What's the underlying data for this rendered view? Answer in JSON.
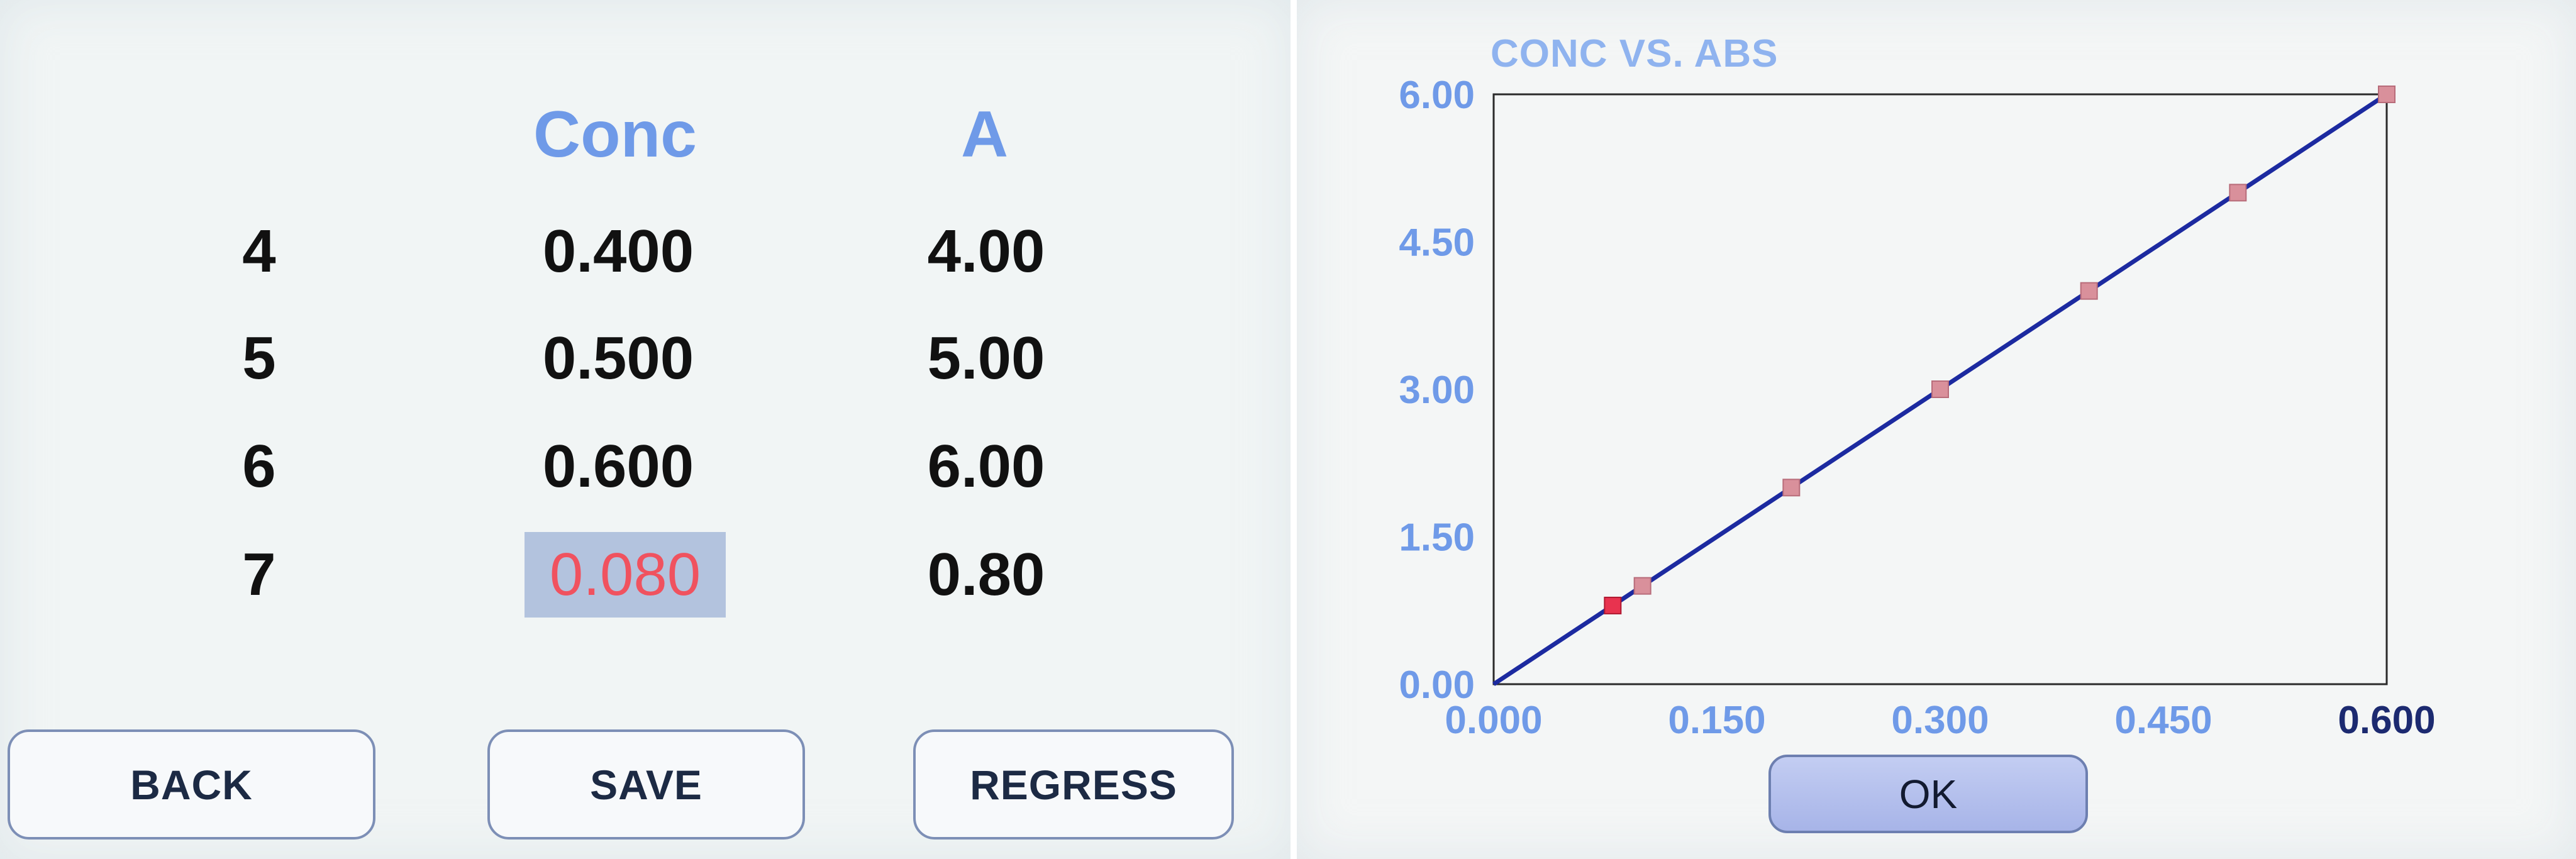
{
  "table": {
    "headers": {
      "conc": "Conc",
      "abs": "A"
    },
    "rows": [
      {
        "index": "4",
        "conc": "0.400",
        "abs": "4.00"
      },
      {
        "index": "5",
        "conc": "0.500",
        "abs": "5.00"
      },
      {
        "index": "6",
        "conc": "0.600",
        "abs": "6.00"
      },
      {
        "index": "7",
        "conc": "0.080",
        "abs": "0.80",
        "selected": true
      }
    ]
  },
  "buttons": {
    "back": "BACK",
    "save": "SAVE",
    "regress": "REGRESS",
    "ok": "OK"
  },
  "colors": {
    "header_text": "#6f9ae8",
    "selected_cell_bg": "#b3c3de",
    "selected_cell_text": "#f0525f",
    "axis_label": "#6f9ae8",
    "line": "#1c2aa0",
    "point": "#d9909b",
    "point_highlight": "#e8334f"
  },
  "chart_data": {
    "type": "line",
    "title": "CONC VS. ABS",
    "xlabel": "",
    "ylabel": "",
    "xlim": [
      0,
      0.6
    ],
    "ylim": [
      0,
      6
    ],
    "x_ticks": [
      "0.000",
      "0.150",
      "0.300",
      "0.450",
      "0.600"
    ],
    "y_ticks": [
      "0.00",
      "1.50",
      "3.00",
      "4.50",
      "6.00"
    ],
    "grid": false,
    "series": [
      {
        "values": [
          {
            "x": 0.08,
            "y": 0.8,
            "highlight": true
          },
          {
            "x": 0.1,
            "y": 1.0
          },
          {
            "x": 0.2,
            "y": 2.0
          },
          {
            "x": 0.3,
            "y": 3.0
          },
          {
            "x": 0.4,
            "y": 4.0
          },
          {
            "x": 0.5,
            "y": 5.0
          },
          {
            "x": 0.6,
            "y": 6.0
          }
        ]
      }
    ],
    "fit_line": {
      "x": [
        0,
        0.6
      ],
      "y": [
        0,
        6
      ]
    }
  }
}
